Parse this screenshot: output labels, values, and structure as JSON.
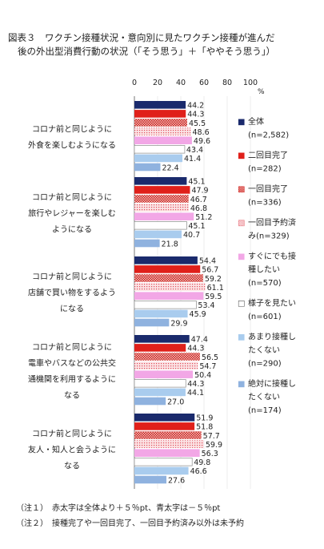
{
  "chart_data": {
    "type": "bar",
    "title_line1": "図表３　ワクチン接種状況・意向別に見たワクチン接種が進んだ",
    "title_line2": "後の外出型消費行動の状況（「そう思う」＋「ややそう思う」）",
    "unit": "%",
    "xlim": [
      0,
      100
    ],
    "xticks": [
      "0",
      "20",
      "40",
      "60",
      "80",
      "100"
    ],
    "categories": [
      [
        "コロナ前と同じように",
        "外食を楽しむようになる"
      ],
      [
        "コロナ前と同じように",
        "旅行やレジャーを楽しむ",
        "ようになる"
      ],
      [
        "コロナ前と同じように",
        "店舗で買い物をするよう",
        "になる"
      ],
      [
        "コロナ前と同じように",
        "電車やバスなどの公共交",
        "通機関を利用するように",
        "なる"
      ],
      [
        "コロナ前と同じように",
        "友人・知人と会うように",
        "なる"
      ]
    ],
    "series": [
      {
        "name": "全体",
        "sub": "(n=2,582)",
        "values": [
          44.2,
          45.1,
          54.4,
          47.4,
          51.9
        ],
        "color": "#1a2a6c",
        "pattern": "solid",
        "legend_marker": "■"
      },
      {
        "name": "二回目完了",
        "sub": "(n=282)",
        "values": [
          44.3,
          47.9,
          56.7,
          44.3,
          51.8
        ],
        "color": "#e0201a",
        "pattern": "solid",
        "legend_marker": "■"
      },
      {
        "name": "一回目完了",
        "sub": "(n=336)",
        "values": [
          45.5,
          46.7,
          59.2,
          56.5,
          57.7
        ],
        "color": "#d0211c",
        "pattern": "checker",
        "legend_marker": "▩"
      },
      {
        "name": "一回目予約済",
        "sub": "み(n=329)",
        "values": [
          48.6,
          46.8,
          61.1,
          54.7,
          59.9
        ],
        "color": "#e8707a",
        "pattern": "dots",
        "legend_marker": "▧"
      },
      {
        "name": "すぐにでも接",
        "sub": "種したい",
        "sub2": "(n=570)",
        "values": [
          49.6,
          51.2,
          59.5,
          50.4,
          56.3
        ],
        "color": "#f2a7e6",
        "pattern": "solid",
        "legend_marker": "■"
      },
      {
        "name": "様子を見たい",
        "sub": "(n=601)",
        "values": [
          43.4,
          45.1,
          53.4,
          44.3,
          49.8
        ],
        "color": "#ffffff",
        "pattern": "outline",
        "legend_marker": "□"
      },
      {
        "name": "あまり接種し",
        "sub": "たくない",
        "sub2": "(n=290)",
        "values": [
          41.4,
          40.7,
          45.9,
          44.1,
          46.6
        ],
        "color": "#a9ccee",
        "pattern": "solid",
        "legend_marker": "■"
      },
      {
        "name": "絶対に接種し",
        "sub": "たくない",
        "sub2": "(n=174)",
        "values": [
          22.4,
          21.8,
          29.9,
          27.0,
          27.6
        ],
        "color": "#8fb2df",
        "pattern": "solid",
        "legend_marker": "■"
      }
    ],
    "value_labels": [
      [
        "44.2",
        "44.3",
        "45.5",
        "48.6",
        "49.6",
        "43.4",
        "41.4",
        "22.4"
      ],
      [
        "45.1",
        "47.9",
        "46.7",
        "46.8",
        "51.2",
        "45.1",
        "40.7",
        "21.8"
      ],
      [
        "54.4",
        "56.7",
        "59.2",
        "61.1",
        "59.5",
        "53.4",
        "45.9",
        "29.9"
      ],
      [
        "47.4",
        "44.3",
        "56.5",
        "54.7",
        "50.4",
        "44.3",
        "44.1",
        "27.0"
      ],
      [
        "51.9",
        "51.8",
        "57.7",
        "59.9",
        "56.3",
        "49.8",
        "46.6",
        "27.6"
      ]
    ],
    "notes": [
      "（注１）　赤太字は全体より＋５％pt、青太字は－５％pt",
      "（注２）　接種完了や一回目完了、一回目予約済み以外は未予約"
    ]
  }
}
